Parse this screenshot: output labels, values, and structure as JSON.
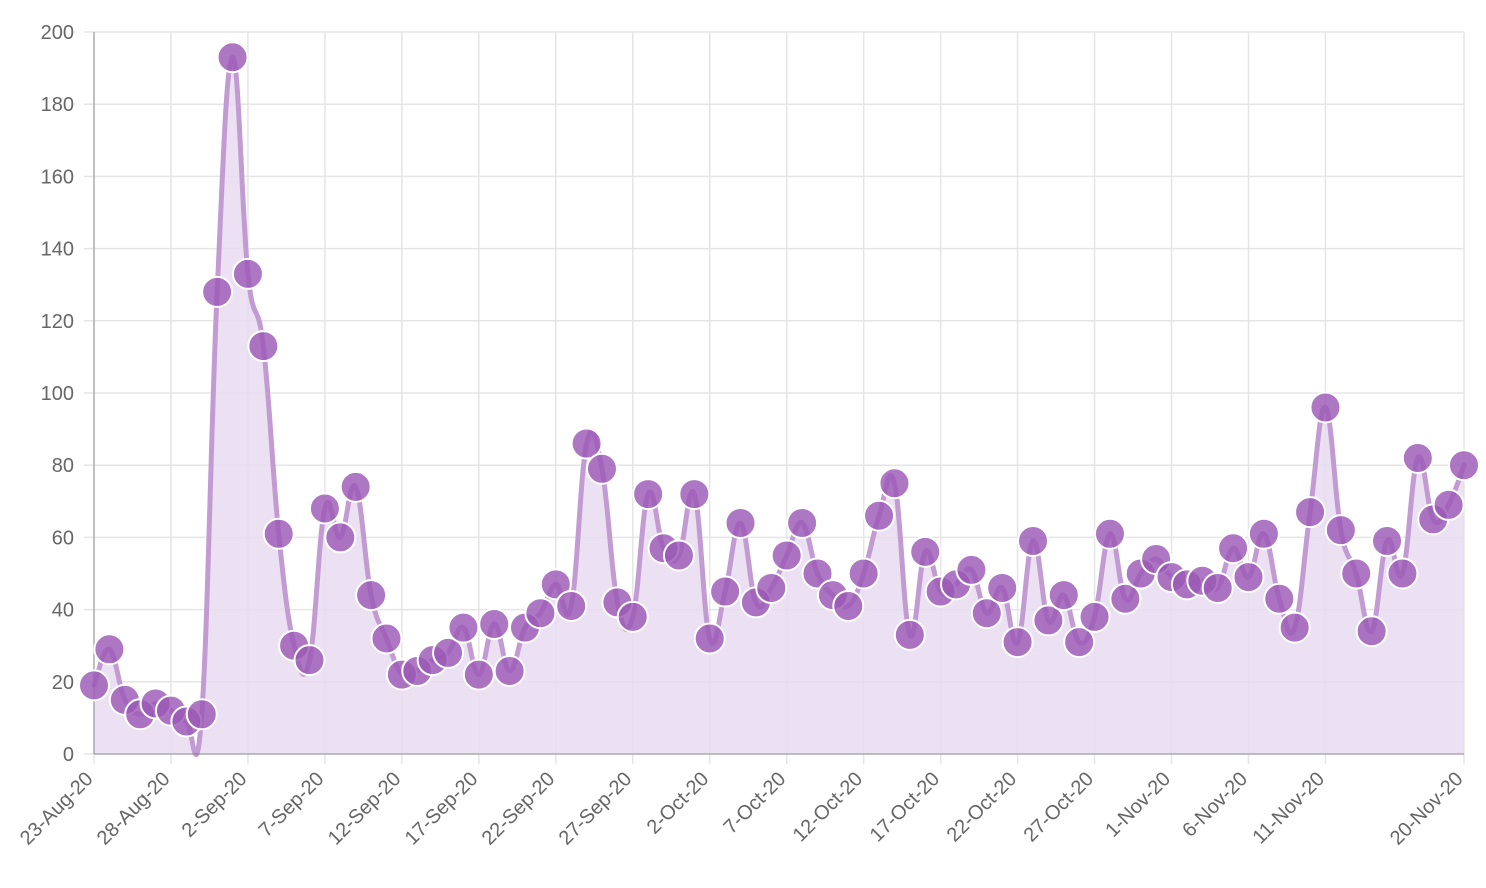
{
  "chart_data": {
    "type": "line",
    "title": "",
    "xlabel": "",
    "ylabel": "",
    "ylim": [
      0,
      200
    ],
    "y_ticks": [
      0,
      20,
      40,
      60,
      80,
      100,
      120,
      140,
      160,
      180,
      200
    ],
    "grid": true,
    "legend": "none",
    "filled": true,
    "smooth": true,
    "x_tick_labels": [
      "23-Aug-20",
      "28-Aug-20",
      "2-Sep-20",
      "7-Sep-20",
      "12-Sep-20",
      "17-Sep-20",
      "22-Sep-20",
      "27-Sep-20",
      "2-Oct-20",
      "7-Oct-20",
      "12-Oct-20",
      "17-Oct-20",
      "22-Oct-20",
      "27-Oct-20",
      "1-Nov-20",
      "6-Nov-20",
      "11-Nov-20",
      "20-Nov-20"
    ],
    "x_tick_dates": [
      "2020-08-23",
      "2020-08-28",
      "2020-09-02",
      "2020-09-07",
      "2020-09-12",
      "2020-09-17",
      "2020-09-22",
      "2020-09-27",
      "2020-10-02",
      "2020-10-07",
      "2020-10-12",
      "2020-10-17",
      "2020-10-22",
      "2020-10-27",
      "2020-11-01",
      "2020-11-06",
      "2020-11-11",
      "2020-11-20"
    ],
    "x_start": "2020-08-23",
    "x_end": "2020-11-20",
    "series": [
      {
        "name": "",
        "x": [
          "2020-08-23",
          "2020-08-24",
          "2020-08-25",
          "2020-08-26",
          "2020-08-27",
          "2020-08-28",
          "2020-08-29",
          "2020-08-30",
          "2020-08-31",
          "2020-09-01",
          "2020-09-02",
          "2020-09-03",
          "2020-09-04",
          "2020-09-05",
          "2020-09-06",
          "2020-09-07",
          "2020-09-08",
          "2020-09-09",
          "2020-09-10",
          "2020-09-11",
          "2020-09-12",
          "2020-09-13",
          "2020-09-14",
          "2020-09-15",
          "2020-09-16",
          "2020-09-17",
          "2020-09-18",
          "2020-09-19",
          "2020-09-20",
          "2020-09-21",
          "2020-09-22",
          "2020-09-23",
          "2020-09-24",
          "2020-09-25",
          "2020-09-26",
          "2020-09-27",
          "2020-09-28",
          "2020-09-29",
          "2020-09-30",
          "2020-10-01",
          "2020-10-02",
          "2020-10-03",
          "2020-10-04",
          "2020-10-05",
          "2020-10-06",
          "2020-10-07",
          "2020-10-08",
          "2020-10-09",
          "2020-10-10",
          "2020-10-11",
          "2020-10-12",
          "2020-10-13",
          "2020-10-14",
          "2020-10-15",
          "2020-10-16",
          "2020-10-17",
          "2020-10-18",
          "2020-10-19",
          "2020-10-20",
          "2020-10-21",
          "2020-10-22",
          "2020-10-23",
          "2020-10-24",
          "2020-10-25",
          "2020-10-26",
          "2020-10-27",
          "2020-10-28",
          "2020-10-29",
          "2020-10-30",
          "2020-10-31",
          "2020-11-01",
          "2020-11-02",
          "2020-11-03",
          "2020-11-04",
          "2020-11-05",
          "2020-11-06",
          "2020-11-07",
          "2020-11-08",
          "2020-11-09",
          "2020-11-10",
          "2020-11-11",
          "2020-11-12",
          "2020-11-13",
          "2020-11-14",
          "2020-11-15",
          "2020-11-16",
          "2020-11-17",
          "2020-11-18",
          "2020-11-19",
          "2020-11-20"
        ],
        "values": [
          19,
          29,
          15,
          11,
          14,
          12,
          9,
          11,
          128,
          193,
          133,
          113,
          61,
          30,
          26,
          68,
          60,
          74,
          44,
          32,
          22,
          23,
          26,
          28,
          35,
          22,
          36,
          23,
          35,
          39,
          47,
          41,
          86,
          79,
          42,
          38,
          72,
          57,
          55,
          72,
          32,
          45,
          64,
          42,
          46,
          55,
          64,
          50,
          44,
          41,
          50,
          66,
          75,
          33,
          56,
          45,
          47,
          51,
          39,
          46,
          31,
          59,
          37,
          44,
          31,
          38,
          61,
          43,
          50,
          54,
          49,
          47,
          48,
          46,
          57,
          49,
          61,
          43,
          35,
          67,
          96,
          62,
          50,
          34,
          59,
          50,
          82,
          65,
          69,
          80
        ],
        "color": "#9B59B6"
      }
    ],
    "colors": {
      "line": "#c39bd3",
      "fill": "#e8dcf0",
      "point": "#9b59b6",
      "point_border": "#ffffff",
      "grid": "#e5e5e5",
      "axis": "#666666",
      "label": "#666666"
    }
  }
}
